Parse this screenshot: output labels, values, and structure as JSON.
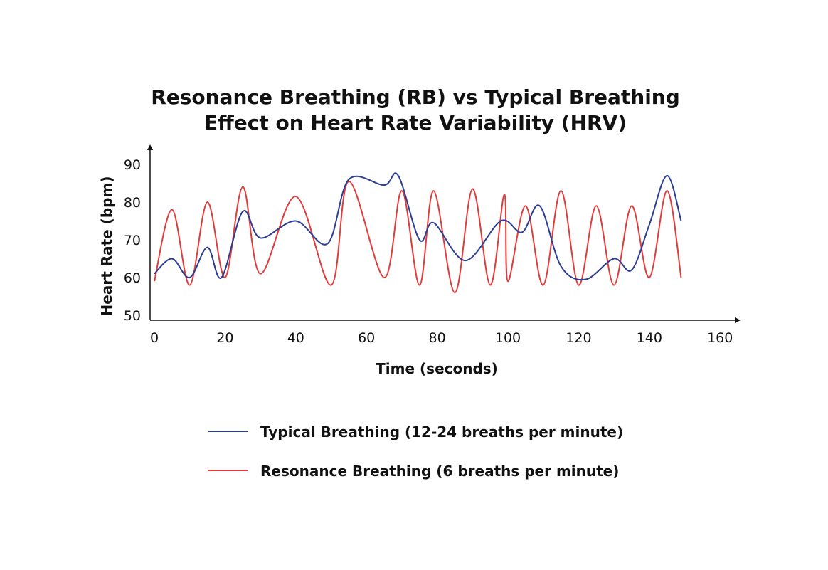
{
  "chart_data": {
    "type": "line",
    "title_lines": [
      "Resonance Breathing (RB) vs Typical Breathing",
      "Effect on Heart Rate Variability (HRV)"
    ],
    "xlabel": "Time (seconds)",
    "ylabel": "Heart Rate (bpm)",
    "xlim": [
      0,
      165
    ],
    "ylim": [
      50,
      93
    ],
    "xticks": [
      0,
      20,
      40,
      60,
      80,
      100,
      120,
      140,
      160
    ],
    "yticks": [
      50,
      60,
      70,
      80,
      90
    ],
    "grid": false,
    "legend_position": "bottom-center",
    "series": [
      {
        "name": "Typical Breathing (12-24 breaths per minute)",
        "color": "#2c3e94",
        "x": [
          0,
          5,
          10,
          15,
          19,
          25,
          30,
          40,
          49,
          55,
          65,
          69,
          75,
          79,
          88,
          98,
          104,
          109,
          115,
          122,
          130,
          135,
          140,
          145,
          149
        ],
        "y": [
          61,
          65,
          60,
          68,
          60,
          77.5,
          70.5,
          75,
          69,
          86,
          84.5,
          87,
          70,
          74.5,
          64.5,
          75,
          72,
          79,
          63,
          59.5,
          65,
          62,
          74,
          87,
          75
        ]
      },
      {
        "name": "Resonance Breathing (6 breaths per minute)",
        "color": "#e23b3b",
        "x": [
          0,
          5,
          10,
          15,
          20,
          25,
          30,
          40,
          50,
          55,
          65,
          70,
          75,
          79,
          85,
          90,
          95,
          99,
          100,
          105,
          110,
          115,
          120,
          125,
          130,
          135,
          140,
          145,
          149
        ],
        "y": [
          59,
          78,
          58,
          80,
          60,
          84,
          61,
          81.5,
          58,
          85.5,
          60,
          83,
          58,
          83,
          56,
          83.5,
          58,
          82,
          59,
          79,
          58,
          83,
          58,
          79,
          58,
          79,
          60,
          83,
          60
        ]
      }
    ]
  }
}
